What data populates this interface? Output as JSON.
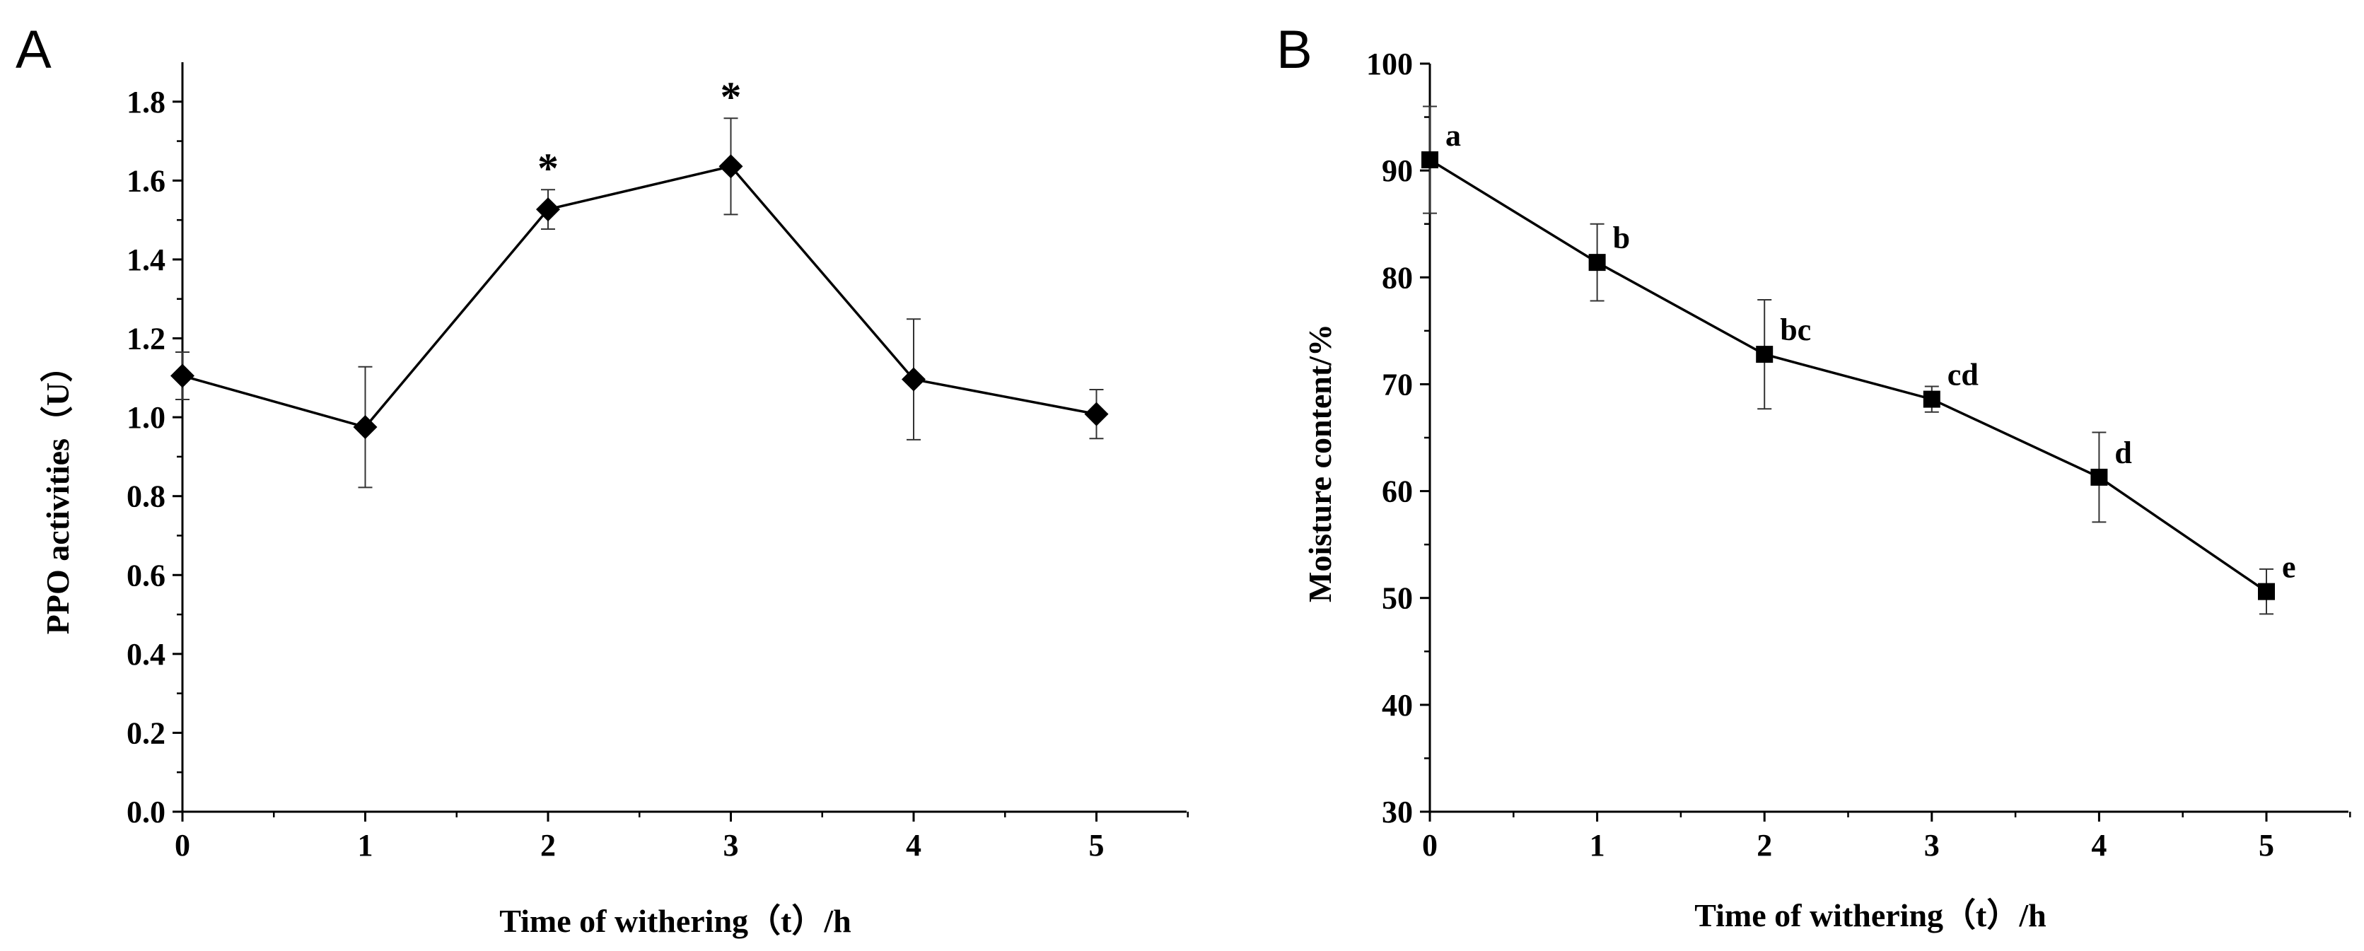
{
  "chart_data": [
    {
      "type": "line",
      "panel_label": "A",
      "title": "",
      "xlabel": "Time of withering（t）/h",
      "ylabel": "PPO activities（U）",
      "x": [
        0,
        1,
        2,
        3,
        4,
        5
      ],
      "xlim": [
        0,
        5.5
      ],
      "ylim": [
        0,
        1.9
      ],
      "xticks": [
        0,
        1,
        2,
        3,
        4,
        5
      ],
      "xtick_labels": [
        "0",
        "1",
        "2",
        "3",
        "4",
        "5"
      ],
      "yticks": [
        0,
        0.2,
        0.4,
        0.6,
        0.8,
        1.0,
        1.2,
        1.4,
        1.6,
        1.8
      ],
      "ytick_labels": [
        "0.0",
        "0.2",
        "0.4",
        "0.6",
        "0.8",
        "1.0",
        "1.2",
        "1.4",
        "1.6",
        "1.8"
      ],
      "grid": false,
      "marker": "diamond",
      "series": [
        {
          "name": "PPO activities",
          "values": [
            1.105,
            0.975,
            1.527,
            1.636,
            1.096,
            1.008
          ],
          "error": [
            0.06,
            0.153,
            0.05,
            0.122,
            0.153,
            0.062
          ]
        }
      ],
      "annotations": [
        {
          "x": 2,
          "text": "*"
        },
        {
          "x": 3,
          "text": "*"
        }
      ]
    },
    {
      "type": "line",
      "panel_label": "B",
      "title": "",
      "xlabel": "Time of withering（t）/h",
      "ylabel": "Moisture content/%",
      "x": [
        0,
        1,
        2,
        3,
        4,
        5
      ],
      "xlim": [
        0,
        5.5
      ],
      "ylim": [
        30,
        100
      ],
      "xticks": [
        0,
        1,
        2,
        3,
        4,
        5
      ],
      "xtick_labels": [
        "0",
        "1",
        "2",
        "3",
        "4",
        "5"
      ],
      "yticks": [
        30,
        40,
        50,
        60,
        70,
        80,
        90,
        100
      ],
      "ytick_labels": [
        "30",
        "40",
        "50",
        "60",
        "70",
        "80",
        "90",
        "100"
      ],
      "grid": false,
      "marker": "square",
      "series": [
        {
          "name": "Moisture content",
          "values": [
            91.0,
            81.4,
            72.8,
            68.6,
            61.3,
            50.6
          ],
          "error": [
            5.0,
            3.6,
            5.1,
            1.2,
            4.2,
            2.1
          ]
        }
      ],
      "annotations": [
        {
          "x": 0,
          "text": "a"
        },
        {
          "x": 1,
          "text": "b"
        },
        {
          "x": 2,
          "text": "bc"
        },
        {
          "x": 3,
          "text": "cd"
        },
        {
          "x": 4,
          "text": "d"
        },
        {
          "x": 5,
          "text": "e"
        }
      ]
    }
  ]
}
